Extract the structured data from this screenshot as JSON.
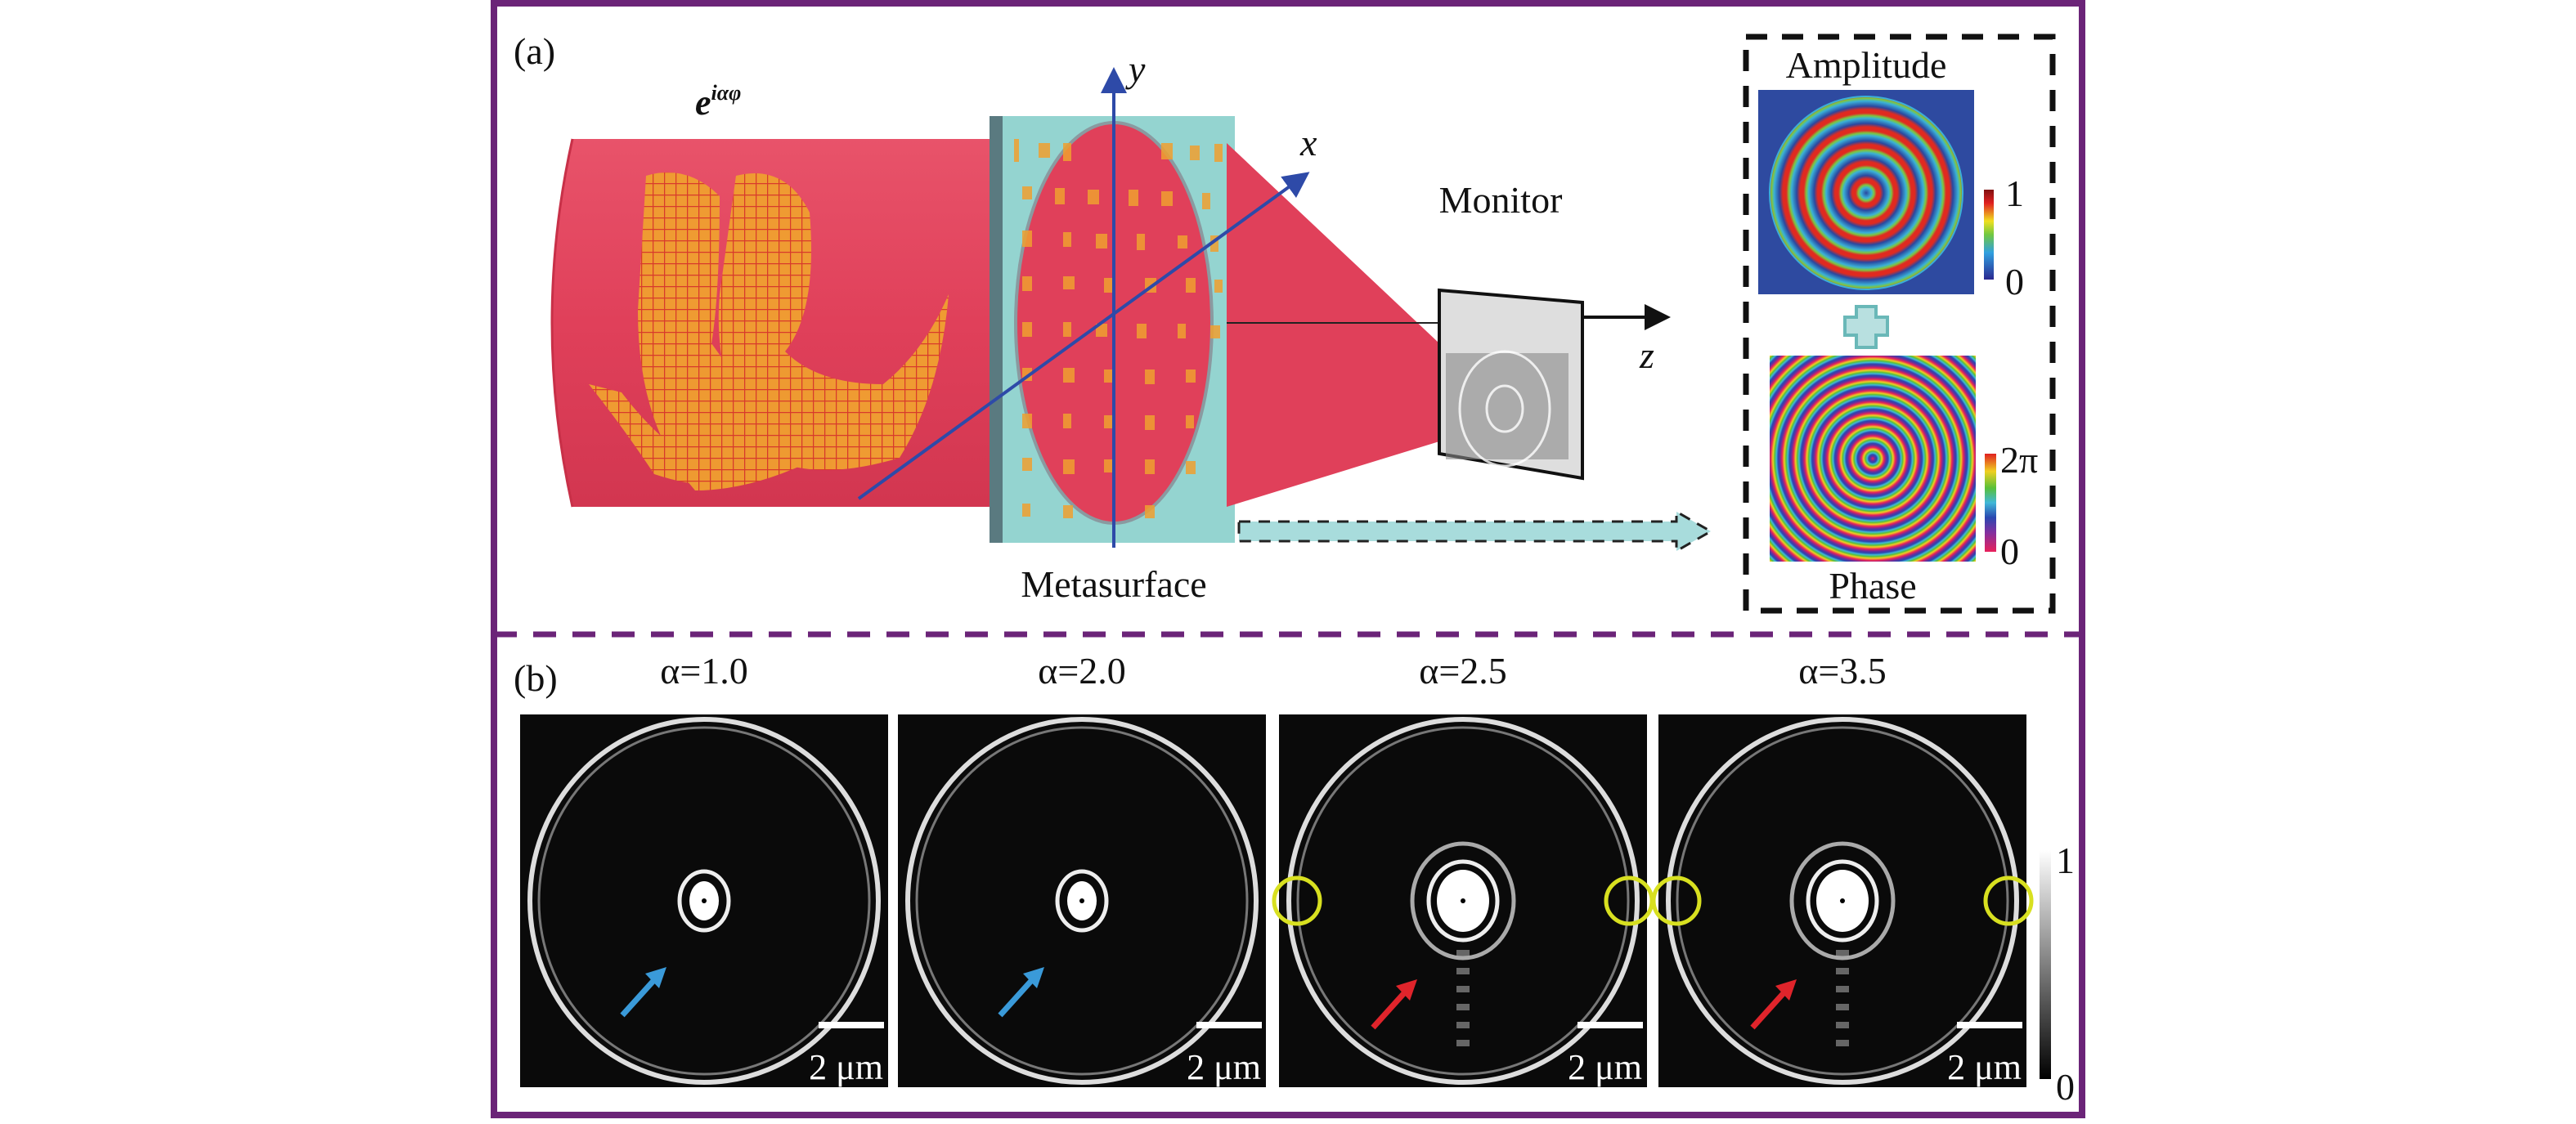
{
  "panel_a": {
    "label": "(a)",
    "field_base": "e",
    "field_exponent": "iαφ",
    "axis_x": "x",
    "axis_y": "y",
    "axis_z": "z",
    "monitor_label": "Monitor",
    "metasurface_label": "Metasurface",
    "amplitude": {
      "title": "Amplitude",
      "cbar_max": "1",
      "cbar_min": "0"
    },
    "phase": {
      "title": "Phase",
      "cbar_max": "2π",
      "cbar_min": "0"
    }
  },
  "panel_b": {
    "label": "(b)",
    "images": [
      {
        "title": "α=1.0",
        "scale_bar": "2 μm",
        "arrow_color": "#3a9ad9",
        "circles": false
      },
      {
        "title": "α=2.0",
        "scale_bar": "2 μm",
        "arrow_color": "#3a9ad9",
        "circles": false
      },
      {
        "title": "α=2.5",
        "scale_bar": "2 μm",
        "arrow_color": "#e0242b",
        "circles": true
      },
      {
        "title": "α=3.5",
        "scale_bar": "2 μm",
        "arrow_color": "#e0242b",
        "circles": true
      }
    ],
    "cbar_max": "1",
    "cbar_min": "0"
  },
  "colors": {
    "frame": "#6b2478",
    "beam": "#e0405a",
    "metasurface": "#94d4d0",
    "axis": "#2e4aa8",
    "highlight_circle": "#d8e020"
  }
}
